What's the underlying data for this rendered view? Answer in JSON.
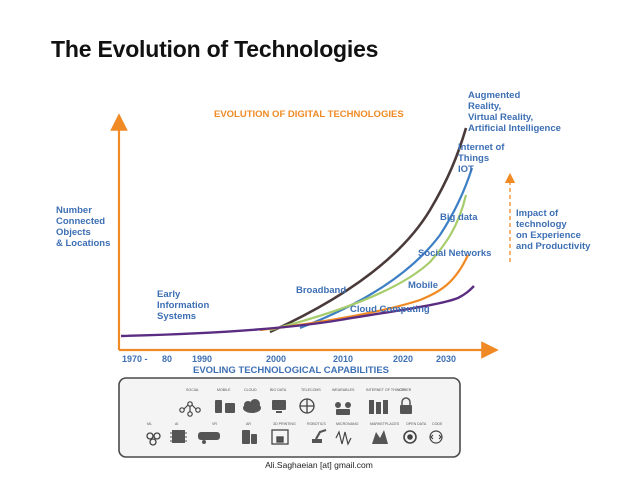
{
  "slide": {
    "title": "The Evolution of Technologies",
    "footer": "Ali.Saghaeian [at] gmail.com"
  },
  "diagram": {
    "heading": "EVOLUTION OF DIGITAL TECHNOLOGIES",
    "y_axis_label": [
      "Number",
      "Connected",
      "Objects",
      "& Locations"
    ],
    "impact_label": [
      "Impact of",
      "technology",
      "on Experience",
      "and Productivity"
    ],
    "x_axis_label": "EVOLING TECHNOLOGICAL CAPABILITIES",
    "x_ticks": [
      "1970 -",
      "80",
      "1990",
      "2000",
      "2010",
      "2020",
      "2030"
    ],
    "curve_labels": {
      "early": [
        "Early",
        "Information",
        "Systems"
      ],
      "broadband": "Broadband",
      "cloud": "Cloud Computing",
      "mobile": "Mobile",
      "social": "Social Networks",
      "bigdata": "Big data",
      "iot": [
        "Internet of",
        "Things",
        "IOT"
      ],
      "ar": [
        "Augmented",
        "Reality,",
        "Virtual Reality,",
        "Artificial Intelligence"
      ]
    },
    "curve_colors": {
      "cloud": "#5a2d82",
      "mobile": "#f08a24",
      "social": "#a6cc6b",
      "bigdata": "#3d7fc4",
      "ar": "#4a3a3a",
      "axis": "#f08a24"
    },
    "capabilities_row1": [
      "SOCIAL",
      "MOBILE",
      "CLOUD",
      "BIG DATA",
      "TELECOMS",
      "WEARABLES",
      "INTERNET OF THINGS",
      "CYBER"
    ],
    "capabilities_row2": [
      "ML",
      "AI",
      "VR",
      "AR",
      "3D PRINTING",
      "ROBOTICS",
      "MICRONANO",
      "MARKETPLACES",
      "OPEN DATA",
      "CODE"
    ]
  }
}
